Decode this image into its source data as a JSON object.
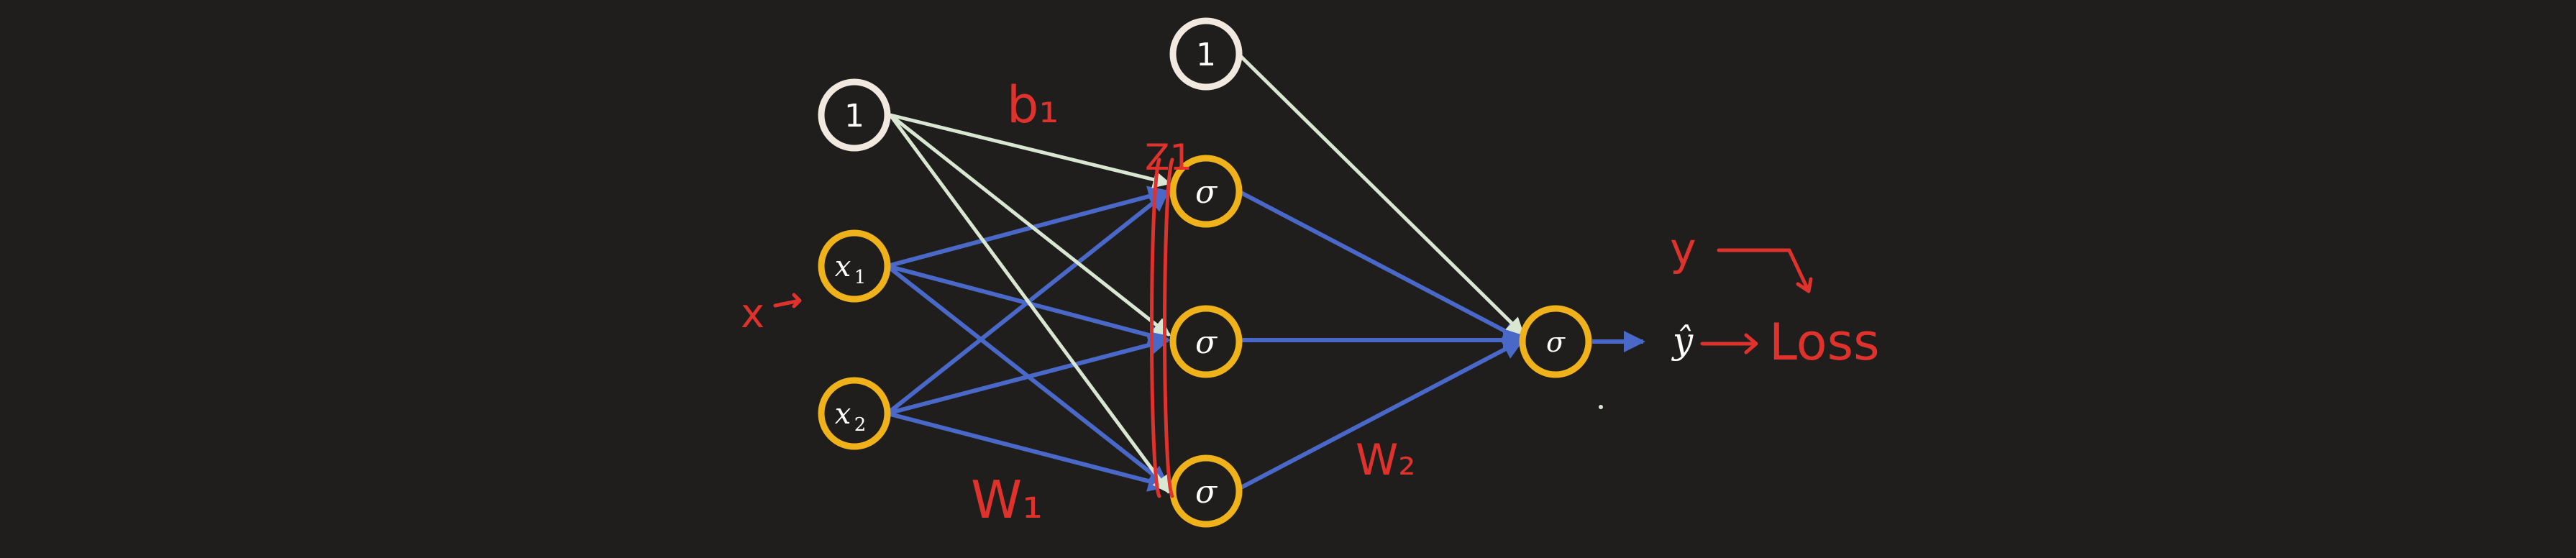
{
  "colors": {
    "background": "#1f1e1d",
    "bias_node": "#f1e9df",
    "unit_node": "#f0b21b",
    "bias_edge": "#d9e6d1",
    "weight_edge": "#4a68c7",
    "annotation": "#e0322c",
    "label": "#ffffff"
  },
  "network": {
    "input_bias": {
      "label": "1",
      "icon": "circle-node"
    },
    "inputs": [
      {
        "label": "x",
        "subscript": "1"
      },
      {
        "label": "x",
        "subscript": "2"
      }
    ],
    "hidden_bias": {
      "label": "1",
      "icon": "circle-node"
    },
    "hidden_units": [
      {
        "label": "σ"
      },
      {
        "label": "σ"
      },
      {
        "label": "σ"
      }
    ],
    "output_unit": {
      "label": "σ"
    },
    "prediction": {
      "label": "ŷ"
    }
  },
  "annotations": {
    "bias_label": "b₁",
    "z_label": "Z1",
    "input_label": "x",
    "weights1_label": "W₁",
    "weights2_label": "W₂",
    "target_label": "y",
    "loss_label": "Loss"
  }
}
